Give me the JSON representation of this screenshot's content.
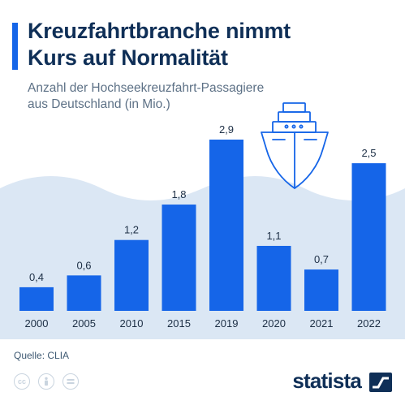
{
  "header": {
    "title_line1": "Kreuzfahrtbranche nimmt",
    "title_line2": "Kurs auf Normalität",
    "subtitle_line1": "Anzahl der Hochseekreuzfahrt-Passagiere",
    "subtitle_line2": "aus Deutschland (in Mio.)"
  },
  "footer": {
    "source": "Quelle: CLIA",
    "brand": "statista",
    "license_icons": [
      "cc-icon",
      "attribution-icon",
      "no-derivatives-icon"
    ]
  },
  "colors": {
    "bar": "#1565e8",
    "title": "#0f2f57",
    "wave_background": "#dbe7f4",
    "ship_outline": "#1565e8"
  },
  "decoration": {
    "ship": "cruise-ship-icon",
    "background": "sea-wave"
  },
  "chart_data": {
    "type": "bar",
    "categories": [
      "2000",
      "2005",
      "2010",
      "2015",
      "2019",
      "2020",
      "2021",
      "2022"
    ],
    "values": [
      0.4,
      0.6,
      1.2,
      1.8,
      2.9,
      1.1,
      0.7,
      2.5
    ],
    "value_labels": [
      "0,4",
      "0,6",
      "1,2",
      "1,8",
      "2,9",
      "1,1",
      "0,7",
      "2,5"
    ],
    "title": "Kreuzfahrtbranche nimmt Kurs auf Normalität",
    "subtitle": "Anzahl der Hochseekreuzfahrt-Passagiere aus Deutschland (in Mio.)",
    "xlabel": "",
    "ylabel": "",
    "ylim": [
      0,
      2.9
    ],
    "grid": false,
    "legend": "none"
  }
}
